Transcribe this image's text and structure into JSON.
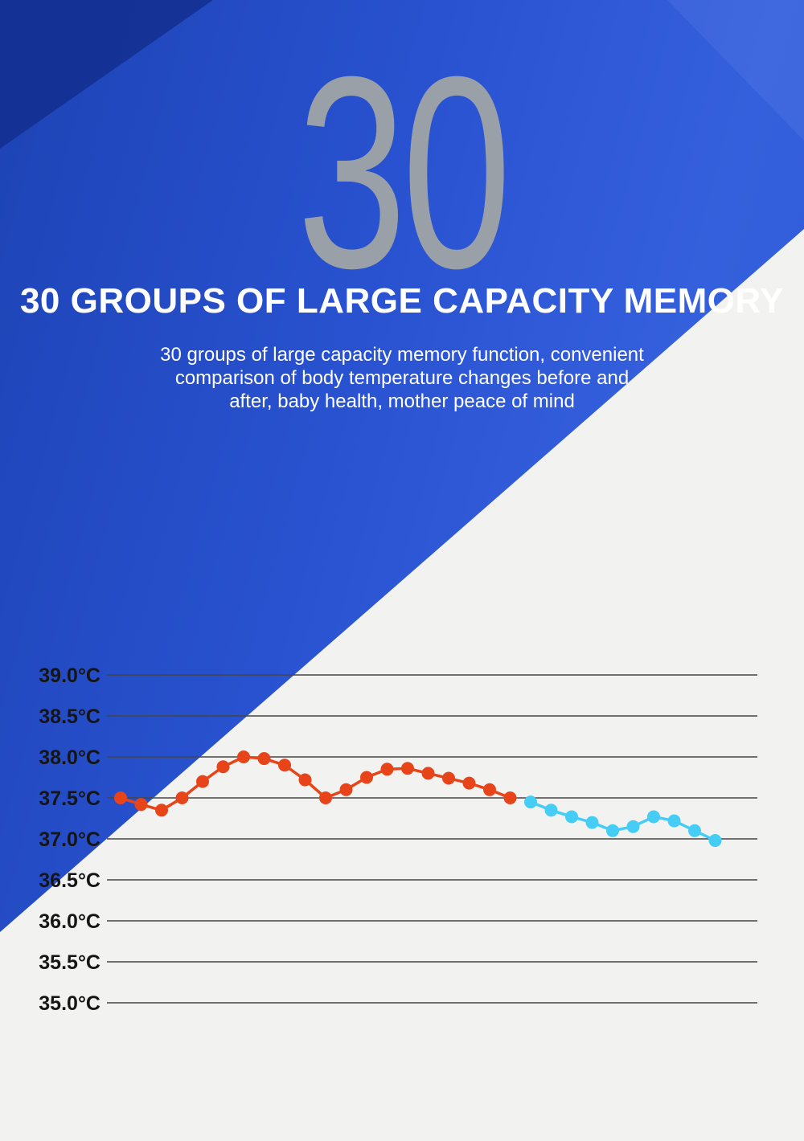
{
  "hero": {
    "big_number": "30",
    "heading": "30 GROUPS OF LARGE CAPACITY MEMORY",
    "description_lines": [
      "30 groups of large capacity memory function, convenient",
      "comparison of body temperature changes before and",
      "after, baby health, mother peace of mind"
    ]
  },
  "colors": {
    "blue_main": "#2952d0",
    "blue_dark_corner": "#132f8f",
    "background_light": "#f2f2f0",
    "big_number_gray": "#9aa0a8",
    "heading_text": "#ffffff",
    "series_red": "#e8441a",
    "series_cyan": "#45cdf5",
    "gridline": "#454545",
    "tick_text": "#151515"
  },
  "chart_data": {
    "type": "line",
    "title": "",
    "xlabel": "",
    "ylabel": "",
    "units": "°C",
    "ylim": [
      35.0,
      39.0
    ],
    "yticks": [
      "39.0°C",
      "38.5°C",
      "38.0°C",
      "37.5°C",
      "37.0°C",
      "36.5°C",
      "36.0°C",
      "35.5°C",
      "35.0°C"
    ],
    "ytick_values": [
      39.0,
      38.5,
      38.0,
      37.5,
      37.0,
      36.5,
      36.0,
      35.5,
      35.0
    ],
    "grid": true,
    "legend": false,
    "point_count_total": 30,
    "series": [
      {
        "name": "red",
        "color": "#e8441a",
        "values": [
          37.5,
          37.42,
          37.35,
          37.5,
          37.7,
          37.88,
          38.0,
          37.98,
          37.9,
          37.72,
          37.5,
          37.6,
          37.75,
          37.85,
          37.86,
          37.8,
          37.74,
          37.68,
          37.6,
          37.5
        ]
      },
      {
        "name": "cyan",
        "color": "#45cdf5",
        "values": [
          37.45,
          37.35,
          37.27,
          37.2,
          37.1,
          37.15,
          37.27,
          37.22,
          37.1,
          36.98
        ]
      }
    ]
  }
}
